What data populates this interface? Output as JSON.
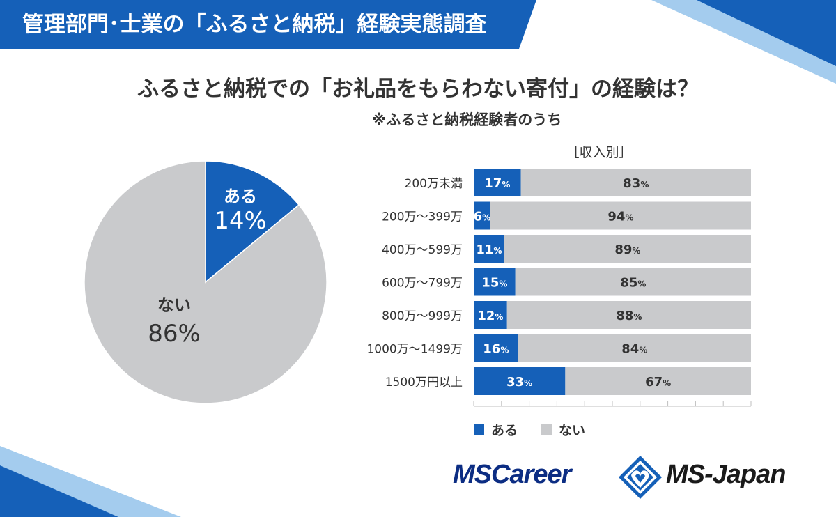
{
  "banner": {
    "title": "管理部門･士業の「ふるさと納税」経験実態調査"
  },
  "heading": "ふるさと納税での「お礼品をもらわない寄付」の経験は？",
  "subheading": "※ふるさと納税経験者のうち",
  "colors": {
    "yes": "#1560b8",
    "no": "#c9cacc",
    "banner": "#1560b8",
    "deco_dark": "#1560b8",
    "deco_light": "#5aa2e0",
    "logo_dark": "#0c2d83"
  },
  "chart_data": [
    {
      "type": "pie",
      "slices": [
        {
          "label": "ある",
          "value": 14,
          "display": "14%"
        },
        {
          "label": "ない",
          "value": 86,
          "display": "86%"
        }
      ]
    },
    {
      "type": "bar",
      "stacked": true,
      "orientation": "horizontal",
      "title": "［収入別］",
      "categories": [
        "200万未満",
        "200万～399万",
        "400万～599万",
        "600万～799万",
        "800万～999万",
        "1000万～1499万",
        "1500万円以上"
      ],
      "series": [
        {
          "name": "ある",
          "values": [
            17,
            6,
            11,
            15,
            12,
            16,
            33
          ]
        },
        {
          "name": "ない",
          "values": [
            83,
            94,
            89,
            85,
            88,
            84,
            67
          ]
        }
      ],
      "xlim": [
        0,
        100
      ],
      "legend": "bottom-left"
    }
  ],
  "logos": {
    "left": "MSCareer",
    "right": "MS-Japan"
  }
}
